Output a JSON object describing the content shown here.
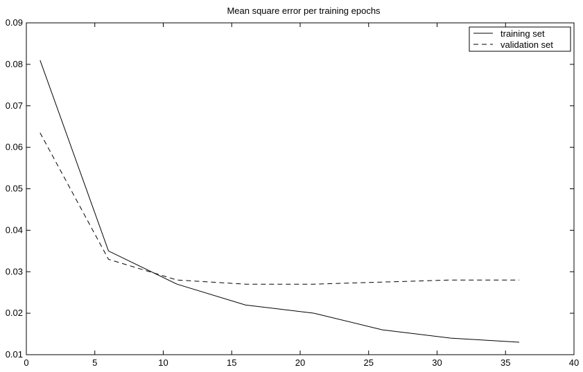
{
  "chart_data": {
    "type": "line",
    "title": "Mean square error per training epochs",
    "xlabel": "",
    "ylabel": "",
    "xlim": [
      0,
      40
    ],
    "ylim": [
      0.01,
      0.09
    ],
    "xticks": [
      0,
      5,
      10,
      15,
      20,
      25,
      30,
      35,
      40
    ],
    "xtick_labels": [
      "0",
      "5",
      "10",
      "15",
      "20",
      "25",
      "30",
      "35",
      "40"
    ],
    "yticks": [
      0.01,
      0.02,
      0.03,
      0.04,
      0.05,
      0.06,
      0.07,
      0.08,
      0.09
    ],
    "ytick_labels": [
      "0.01",
      "0.02",
      "0.03",
      "0.04",
      "0.05",
      "0.06",
      "0.07",
      "0.08",
      "0.09"
    ],
    "grid": false,
    "legend_position": "top-right",
    "series": [
      {
        "name": "training set",
        "style": "solid",
        "color": "#000000",
        "x": [
          1,
          6,
          11,
          16,
          21,
          26,
          31,
          36
        ],
        "values": [
          0.081,
          0.035,
          0.027,
          0.022,
          0.02,
          0.016,
          0.014,
          0.013
        ]
      },
      {
        "name": "validation set",
        "style": "dashed",
        "color": "#000000",
        "x": [
          1,
          6,
          11,
          16,
          21,
          26,
          31,
          36
        ],
        "values": [
          0.0635,
          0.033,
          0.028,
          0.027,
          0.027,
          0.0275,
          0.028,
          0.028
        ]
      }
    ]
  }
}
